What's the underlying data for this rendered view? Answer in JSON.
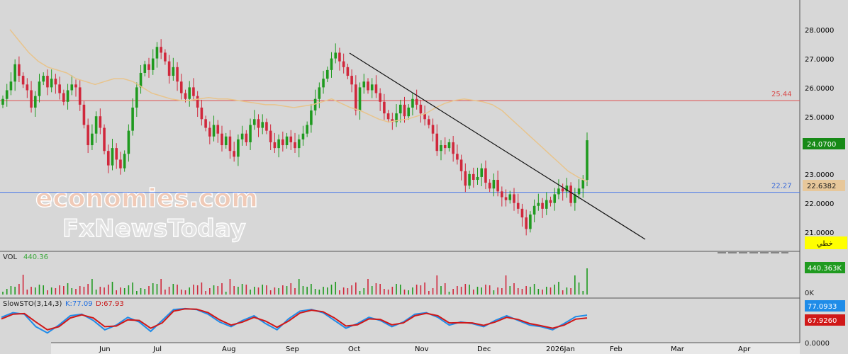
{
  "watermark": {
    "line1": "economies.com",
    "line2": "FxNewsToday"
  },
  "colors": {
    "background": "#d7d7d7",
    "up": "#1f9a1f",
    "down": "#d0283c",
    "ma": "#e8c48c",
    "resistance": "#e05050",
    "support": "#4a78e8",
    "trendline": "#111111",
    "stoch_k": "#1f8ce8",
    "stoch_d": "#d01818"
  },
  "chart_data": [
    {
      "type": "candlestick",
      "x_tick_labels": [
        "Jun",
        "Jul",
        "Aug",
        "Sep",
        "Oct",
        "Nov",
        "Dec",
        "2026Jan",
        "Feb",
        "Mar",
        "Apr"
      ],
      "y_tick_labels": [
        "28.0000",
        "27.0000",
        "26.0000",
        "25.0000",
        "23.0000",
        "22.0000",
        "21.0000"
      ],
      "ylim": [
        20.3,
        28.8
      ],
      "last_price": "24.0700",
      "ma_value": "22.6382",
      "chart_type_label": "خطي",
      "resistance": {
        "value": 25.44,
        "label": "25.44"
      },
      "support": {
        "value": 22.27,
        "label": "22.27"
      },
      "trendline": {
        "from": {
          "date": "Oct",
          "price": 27.2
        },
        "to": {
          "date": "Apr",
          "price": 20.8
        }
      },
      "series": [
        {
          "name": "price",
          "closes": [
            25.5,
            25.8,
            26.1,
            26.7,
            26.3,
            26.0,
            25.8,
            25.2,
            25.6,
            26.1,
            26.3,
            25.9,
            26.2,
            26.0,
            25.7,
            25.4,
            25.8,
            26.0,
            25.9,
            25.3,
            24.6,
            23.9,
            24.3,
            24.9,
            24.5,
            23.7,
            23.2,
            23.8,
            23.4,
            23.1,
            23.6,
            24.4,
            25.2,
            25.9,
            26.4,
            26.7,
            26.5,
            26.9,
            27.3,
            27.1,
            26.8,
            26.3,
            26.6,
            26.1,
            25.7,
            25.5,
            25.9,
            25.6,
            25.2,
            24.8,
            24.5,
            24.2,
            24.6,
            24.3,
            23.9,
            24.2,
            23.7,
            23.5,
            24.1,
            24.3,
            24.0,
            24.6,
            24.8,
            24.5,
            24.7,
            24.4,
            24.0,
            23.8,
            24.1,
            23.9,
            24.2,
            24.0,
            23.8,
            24.1,
            24.3,
            24.6,
            25.1,
            25.5,
            25.9,
            26.2,
            26.5,
            26.9,
            27.1,
            26.8,
            26.6,
            26.3,
            26.0,
            25.1,
            25.9,
            26.1,
            25.8,
            26.0,
            25.7,
            25.4,
            25.0,
            24.8,
            24.7,
            25.0,
            25.3,
            24.9,
            25.2,
            25.5,
            25.3,
            25.0,
            24.8,
            24.6,
            24.3,
            23.7,
            23.9,
            23.8,
            24.0,
            23.6,
            23.4,
            23.0,
            22.5,
            22.9,
            22.7,
            22.8,
            23.1,
            22.6,
            22.4,
            22.7,
            22.3,
            22.1,
            22.0,
            22.2,
            21.9,
            21.7,
            21.4,
            21.0,
            21.5,
            21.8,
            21.9,
            21.7,
            22.0,
            21.9,
            22.2,
            22.4,
            22.3,
            22.5,
            21.9,
            22.2,
            22.4,
            22.7,
            24.07
          ]
        },
        {
          "name": "MA",
          "values": [
            27.9,
            27.5,
            27.1,
            26.8,
            26.6,
            26.5,
            26.4,
            26.2,
            26.1,
            26.0,
            26.1,
            26.2,
            26.2,
            26.1,
            25.9,
            25.7,
            25.6,
            25.5,
            25.45,
            25.45,
            25.5,
            25.55,
            25.5,
            25.5,
            25.45,
            25.4,
            25.35,
            25.3,
            25.3,
            25.25,
            25.2,
            25.25,
            25.3,
            25.4,
            25.5,
            25.35,
            25.2,
            25.1,
            24.95,
            24.8,
            24.7,
            24.75,
            24.8,
            24.9,
            25.0,
            25.2,
            25.35,
            25.45,
            25.5,
            25.45,
            25.4,
            25.3,
            25.1,
            24.8,
            24.5,
            24.2,
            23.9,
            23.6,
            23.3,
            23.0,
            22.8,
            22.64
          ]
        }
      ]
    },
    {
      "type": "bar",
      "label": "VOL",
      "value": "440.36",
      "axis_value": "440.363K",
      "y_tick_labels": [
        "0K"
      ]
    },
    {
      "type": "line",
      "label": "SlowSTO(3,14,3)",
      "k_label": "K:77.09",
      "d_label": "D:67.93",
      "k_value": "77.0933",
      "d_value": "67.9260",
      "y_tick_labels": [
        "0.0000"
      ],
      "series": [
        {
          "name": "K",
          "values": [
            70,
            85,
            80,
            40,
            20,
            45,
            75,
            80,
            60,
            30,
            45,
            70,
            55,
            25,
            60,
            95,
            98,
            95,
            80,
            55,
            40,
            60,
            75,
            50,
            30,
            65,
            90,
            95,
            85,
            60,
            35,
            50,
            70,
            60,
            40,
            55,
            80,
            85,
            70,
            45,
            55,
            50,
            40,
            60,
            75,
            60,
            45,
            40,
            30,
            50,
            72,
            77
          ]
        },
        {
          "name": "D",
          "values": [
            65,
            80,
            82,
            55,
            30,
            40,
            68,
            78,
            68,
            40,
            42,
            62,
            60,
            35,
            52,
            90,
            97,
            96,
            85,
            62,
            45,
            55,
            70,
            58,
            38,
            58,
            84,
            93,
            88,
            68,
            42,
            46,
            65,
            63,
            46,
            52,
            75,
            83,
            75,
            52,
            53,
            52,
            44,
            55,
            70,
            63,
            50,
            43,
            35,
            45,
            64,
            68
          ]
        }
      ]
    }
  ]
}
